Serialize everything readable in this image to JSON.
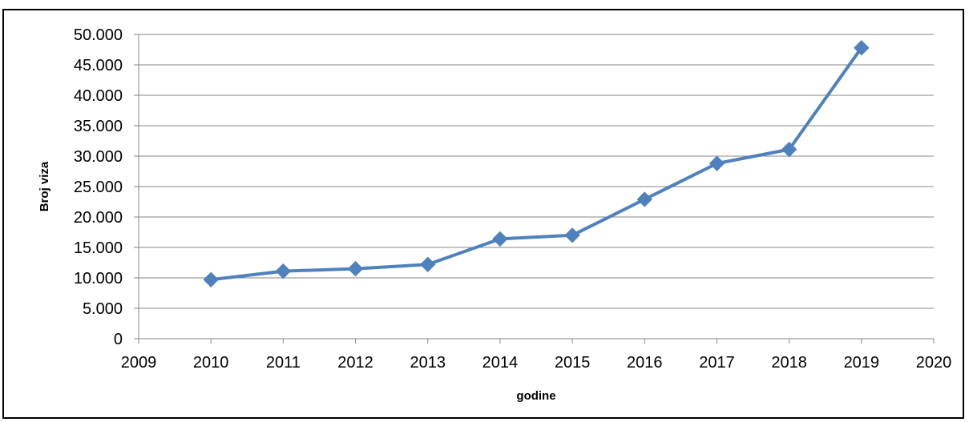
{
  "chart_data": {
    "type": "scatter",
    "mode": "lines+markers",
    "title": "",
    "xlabel": "godine",
    "ylabel": "Broj viza",
    "xlim": [
      2009,
      2020
    ],
    "ylim": [
      0,
      50000
    ],
    "x_ticks": [
      "2009",
      "2010",
      "2011",
      "2012",
      "2013",
      "2014",
      "2015",
      "2016",
      "2017",
      "2018",
      "2019",
      "2020"
    ],
    "y_ticks": [
      "0",
      "5.000",
      "10.000",
      "15.000",
      "20.000",
      "25.000",
      "30.000",
      "35.000",
      "40.000",
      "45.000",
      "50.000"
    ],
    "x_tick_values": [
      2009,
      2010,
      2011,
      2012,
      2013,
      2014,
      2015,
      2016,
      2017,
      2018,
      2019,
      2020
    ],
    "y_tick_values": [
      0,
      5000,
      10000,
      15000,
      20000,
      25000,
      30000,
      35000,
      40000,
      45000,
      50000
    ],
    "grid": "horizontal",
    "legend": "none",
    "color": "#4f81bd",
    "marker": "diamond",
    "series": [
      {
        "x": [
          2010,
          2011,
          2012,
          2013,
          2014,
          2015,
          2016,
          2017,
          2018,
          2019
        ],
        "y": [
          9700,
          11100,
          11500,
          12200,
          16400,
          17000,
          22900,
          28800,
          31100,
          47800
        ]
      }
    ]
  }
}
